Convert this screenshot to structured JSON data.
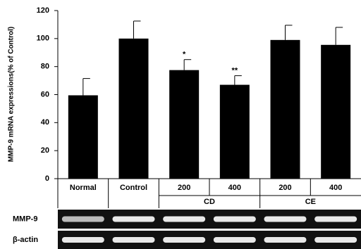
{
  "chart_data": {
    "type": "bar",
    "y_label": "MMP-9 mRNA expressions(% of Control)",
    "categories": [
      "Normal",
      "Control",
      "200",
      "400",
      "200",
      "400"
    ],
    "groups": [
      {
        "name": "CD",
        "members": [
          2,
          3
        ]
      },
      {
        "name": "CE",
        "members": [
          4,
          5
        ]
      }
    ],
    "values": [
      59.5,
      100,
      77.5,
      67,
      99,
      95.5
    ],
    "errors": [
      12,
      12.5,
      7.5,
      6.5,
      10.5,
      12.5
    ],
    "significance": [
      null,
      null,
      "*",
      "**",
      null,
      null
    ],
    "color": "#000000",
    "ylim": [
      0,
      120
    ],
    "yticks": [
      0,
      20,
      40,
      60,
      80,
      100,
      120
    ],
    "grid": false,
    "blots": [
      {
        "name": "MMP-9"
      },
      {
        "name": "β-actin"
      }
    ]
  }
}
